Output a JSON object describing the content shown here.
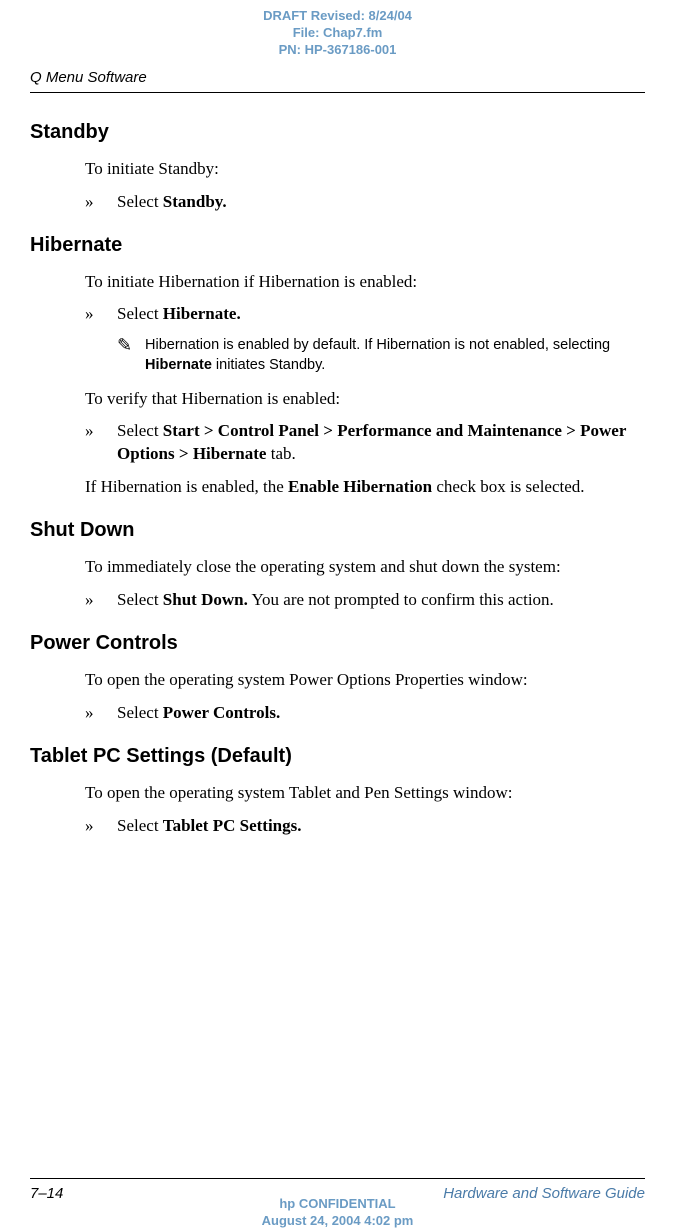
{
  "draft_header": {
    "line1": "DRAFT Revised: 8/24/04",
    "line2": "File: Chap7.fm",
    "line3": "PN: HP-367186-001"
  },
  "header": {
    "title": "Q Menu Software"
  },
  "sections": {
    "standby": {
      "heading": "Standby",
      "intro": "To initiate Standby:",
      "bullet_marker": "»",
      "bullet_prefix": "Select ",
      "bullet_bold": "Standby."
    },
    "hibernate": {
      "heading": "Hibernate",
      "intro": "To initiate Hibernation if Hibernation is enabled:",
      "bullet_marker": "»",
      "bullet_prefix": "Select ",
      "bullet_bold": "Hibernate.",
      "note_icon": "✎",
      "note_text_1": "Hibernation is enabled by default. If Hibernation is not enabled, selecting ",
      "note_bold": "Hibernate",
      "note_text_2": " initiates Standby.",
      "verify_intro": "To verify that Hibernation is enabled:",
      "verify_bullet_marker": "»",
      "verify_prefix": "Select ",
      "verify_bold": "Start > Control Panel > Performance and Maintenance > Power Options > Hibernate",
      "verify_suffix": " tab.",
      "enabled_text_1": "If Hibernation is enabled, the ",
      "enabled_bold": "Enable Hibernation",
      "enabled_text_2": " check box is selected."
    },
    "shutdown": {
      "heading": "Shut Down",
      "intro": "To immediately close the operating system and shut down the system:",
      "bullet_marker": "»",
      "bullet_prefix": "Select ",
      "bullet_bold": "Shut Down.",
      "bullet_suffix": " You are not prompted to confirm this action."
    },
    "power_controls": {
      "heading": "Power Controls",
      "intro": "To open the operating system Power Options Properties window:",
      "bullet_marker": "»",
      "bullet_prefix": "Select ",
      "bullet_bold": "Power Controls."
    },
    "tablet_pc": {
      "heading": "Tablet PC Settings (Default)",
      "intro": "To open the operating system Tablet and Pen Settings window:",
      "bullet_marker": "»",
      "bullet_prefix": "Select ",
      "bullet_bold": "Tablet PC Settings."
    }
  },
  "footer": {
    "page_number": "7–14",
    "guide_title": "Hardware and Software Guide"
  },
  "confidential": {
    "line1": "hp CONFIDENTIAL",
    "line2": "August 24, 2004 4:02 pm"
  }
}
